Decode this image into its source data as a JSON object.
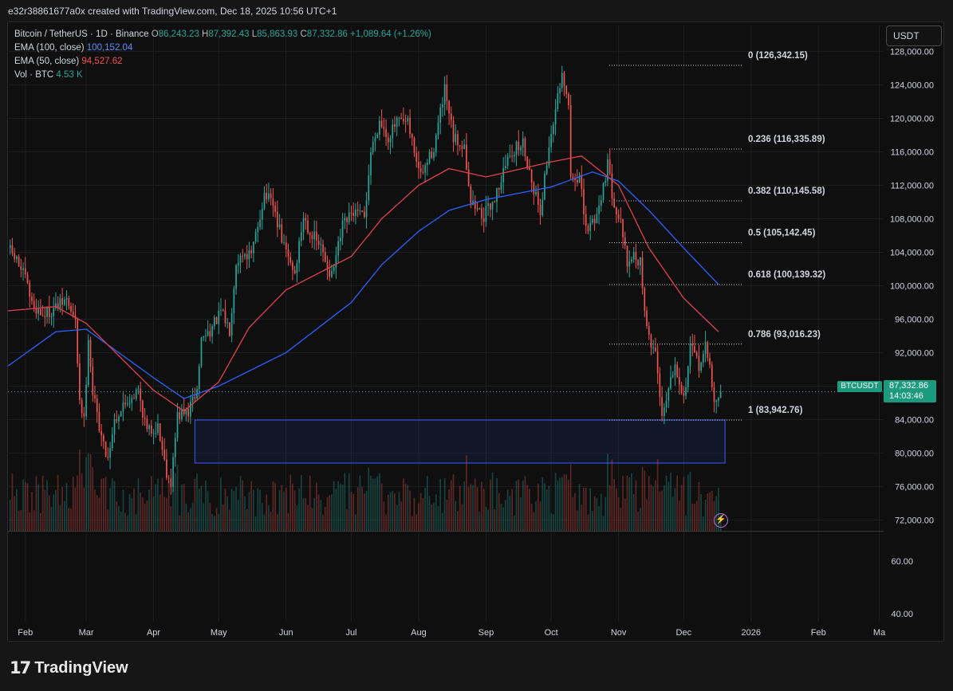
{
  "header": {
    "credit": "e32r38861677a0x created with TradingView.com, Dec 18, 2025 10:56 UTC+1"
  },
  "legend": {
    "symbol": "Bitcoin / TetherUS · 1D · Binance",
    "ohlc": [
      {
        "k": "O",
        "v": "86,243.23"
      },
      {
        "k": "H",
        "v": "87,392.43"
      },
      {
        "k": "L",
        "v": "85,863.93"
      },
      {
        "k": "C",
        "v": "87,332.86"
      }
    ],
    "change": "+1,089.64 (+1.26%)",
    "ema100_label": "EMA (100, close)",
    "ema100_value": "100,152.04",
    "ema50_label": "EMA (50, close)",
    "ema50_value": "94,527.62",
    "vol_label": "Vol · BTC",
    "vol_value": "4.53 K"
  },
  "currency_button": "USDT",
  "last_price": {
    "symbol": "BTCUSDT",
    "price": "87,332.86",
    "countdown": "14:03:46"
  },
  "brand": {
    "name": "TradingView",
    "mark": "17"
  },
  "colors": {
    "bull": "#26a69a",
    "bear": "#ef5350",
    "ema100": "#2962ff",
    "ema50": "#e0424e",
    "zone": "#3d5afe",
    "bg": "#0f0f0f",
    "grid": "#1e1e1e"
  },
  "chart_data": {
    "type": "candlestick",
    "instrument": "BTCUSDT",
    "timeframe": "1D",
    "y_axis": {
      "ticks": [
        128000,
        124000,
        120000,
        116000,
        112000,
        108000,
        104000,
        100000,
        96000,
        92000,
        88000,
        84000,
        80000,
        76000,
        72000
      ],
      "tick_labels": [
        "128,000.00",
        "124,000.00",
        "120,000.00",
        "116,000.00",
        "112,000.00",
        "108,000.00",
        "104,000.00",
        "100,000.00",
        "96,000.00",
        "92,000.00",
        "88,000.00",
        "84,000.00",
        "80,000.00",
        "76,000.00",
        "72,000.00"
      ],
      "range": [
        70700,
        129200
      ]
    },
    "volume_axis": {
      "tick_labels": [
        "60.00",
        "40.00"
      ]
    },
    "x_axis": {
      "labels": [
        "Feb",
        "Mar",
        "Apr",
        "May",
        "Jun",
        "Jul",
        "Aug",
        "Sep",
        "Oct",
        "Nov",
        "Dec",
        "2026",
        "Feb",
        "Ma"
      ],
      "range": [
        "2025-01-24",
        "2026-03-03"
      ]
    },
    "fibonacci": [
      {
        "ratio": "0",
        "price": 126342.15,
        "label": "0 (126,342.15)"
      },
      {
        "ratio": "0.236",
        "price": 116335.89,
        "label": "0.236 (116,335.89)"
      },
      {
        "ratio": "0.382",
        "price": 110145.58,
        "label": "0.382 (110,145.58)"
      },
      {
        "ratio": "0.5",
        "price": 105142.45,
        "label": "0.5 (105,142.45)"
      },
      {
        "ratio": "0.618",
        "price": 100139.32,
        "label": "0.618 (100,139.32)"
      },
      {
        "ratio": "0.786",
        "price": 93016.23,
        "label": "0.786 (93,016.23)"
      },
      {
        "ratio": "1",
        "price": 83942.76,
        "label": "1 (83,942.76)"
      }
    ],
    "zone": {
      "from": "2025-04-20",
      "to": "2025-12-20",
      "top": 83942.76,
      "bottom": 78800
    },
    "last_close": 87332.86,
    "price_anchors": [
      [
        "2025-01-24",
        104500
      ],
      [
        "2025-01-28",
        103000
      ],
      [
        "2025-02-01",
        100800
      ],
      [
        "2025-02-04",
        97800
      ],
      [
        "2025-02-09",
        96500
      ],
      [
        "2025-02-14",
        97200
      ],
      [
        "2025-02-20",
        98300
      ],
      [
        "2025-02-24",
        95500
      ],
      [
        "2025-02-26",
        86500
      ],
      [
        "2025-02-28",
        83800
      ],
      [
        "2025-03-02",
        94000
      ],
      [
        "2025-03-04",
        87200
      ],
      [
        "2025-03-09",
        80800
      ],
      [
        "2025-03-11",
        79500
      ],
      [
        "2025-03-14",
        84000
      ],
      [
        "2025-03-19",
        86000
      ],
      [
        "2025-03-25",
        87500
      ],
      [
        "2025-03-29",
        82500
      ],
      [
        "2025-04-03",
        83200
      ],
      [
        "2025-04-07",
        77800
      ],
      [
        "2025-04-09",
        76500
      ],
      [
        "2025-04-12",
        84500
      ],
      [
        "2025-04-17",
        84900
      ],
      [
        "2025-04-21",
        87500
      ],
      [
        "2025-04-23",
        93600
      ],
      [
        "2025-04-28",
        95000
      ],
      [
        "2025-05-02",
        96800
      ],
      [
        "2025-05-06",
        94800
      ],
      [
        "2025-05-09",
        103000
      ],
      [
        "2025-05-13",
        104000
      ],
      [
        "2025-05-16",
        103500
      ],
      [
        "2025-05-22",
        111000
      ],
      [
        "2025-05-26",
        109500
      ],
      [
        "2025-05-31",
        104600
      ],
      [
        "2025-06-05",
        101500
      ],
      [
        "2025-06-09",
        108300
      ],
      [
        "2025-06-12",
        106500
      ],
      [
        "2025-06-17",
        104500
      ],
      [
        "2025-06-22",
        101000
      ],
      [
        "2025-06-27",
        107000
      ],
      [
        "2025-07-02",
        108800
      ],
      [
        "2025-07-07",
        108000
      ],
      [
        "2025-07-10",
        116000
      ],
      [
        "2025-07-14",
        119800
      ],
      [
        "2025-07-18",
        117800
      ],
      [
        "2025-07-22",
        119500
      ],
      [
        "2025-07-27",
        119300
      ],
      [
        "2025-08-02",
        113000
      ],
      [
        "2025-08-08",
        116500
      ],
      [
        "2025-08-13",
        123300
      ],
      [
        "2025-08-17",
        117500
      ],
      [
        "2025-08-22",
        116800
      ],
      [
        "2025-08-25",
        110000
      ],
      [
        "2025-08-31",
        108300
      ],
      [
        "2025-09-05",
        110500
      ],
      [
        "2025-09-12",
        115900
      ],
      [
        "2025-09-18",
        117000
      ],
      [
        "2025-09-22",
        112600
      ],
      [
        "2025-09-26",
        109000
      ],
      [
        "2025-10-01",
        118500
      ],
      [
        "2025-10-04",
        122300
      ],
      [
        "2025-10-06",
        124700
      ],
      [
        "2025-10-09",
        121500
      ],
      [
        "2025-10-10",
        112800
      ],
      [
        "2025-10-14",
        113000
      ],
      [
        "2025-10-17",
        106500
      ],
      [
        "2025-10-22",
        108500
      ],
      [
        "2025-10-27",
        114500
      ],
      [
        "2025-10-29",
        111000
      ],
      [
        "2025-11-03",
        106500
      ],
      [
        "2025-11-05",
        101500
      ],
      [
        "2025-11-07",
        103500
      ],
      [
        "2025-11-11",
        103000
      ],
      [
        "2025-11-14",
        94500
      ],
      [
        "2025-11-18",
        92000
      ],
      [
        "2025-11-21",
        84500
      ],
      [
        "2025-11-24",
        88000
      ],
      [
        "2025-11-27",
        91000
      ],
      [
        "2025-12-01",
        86500
      ],
      [
        "2025-12-04",
        92500
      ],
      [
        "2025-12-08",
        90500
      ],
      [
        "2025-12-11",
        92500
      ],
      [
        "2025-12-13",
        90200
      ],
      [
        "2025-12-15",
        86500
      ],
      [
        "2025-12-17",
        86200
      ],
      [
        "2025-12-18",
        87332
      ]
    ],
    "ema100_anchors": [
      [
        "2025-01-24",
        90400
      ],
      [
        "2025-02-15",
        94500
      ],
      [
        "2025-03-01",
        94800
      ],
      [
        "2025-04-01",
        89000
      ],
      [
        "2025-04-15",
        86500
      ],
      [
        "2025-05-01",
        88000
      ],
      [
        "2025-06-01",
        92000
      ],
      [
        "2025-07-01",
        98000
      ],
      [
        "2025-07-15",
        102500
      ],
      [
        "2025-08-01",
        106500
      ],
      [
        "2025-08-15",
        109000
      ],
      [
        "2025-09-01",
        110300
      ],
      [
        "2025-10-01",
        111800
      ],
      [
        "2025-10-20",
        113600
      ],
      [
        "2025-11-01",
        112500
      ],
      [
        "2025-11-15",
        109000
      ],
      [
        "2025-12-01",
        104500
      ],
      [
        "2025-12-17",
        100150
      ]
    ],
    "ema50_anchors": [
      [
        "2025-01-24",
        97000
      ],
      [
        "2025-02-15",
        97500
      ],
      [
        "2025-03-01",
        95500
      ],
      [
        "2025-04-01",
        87500
      ],
      [
        "2025-04-15",
        85000
      ],
      [
        "2025-05-01",
        88500
      ],
      [
        "2025-05-15",
        95000
      ],
      [
        "2025-06-01",
        99500
      ],
      [
        "2025-07-01",
        103500
      ],
      [
        "2025-07-15",
        108000
      ],
      [
        "2025-08-01",
        112000
      ],
      [
        "2025-08-15",
        114000
      ],
      [
        "2025-09-01",
        113000
      ],
      [
        "2025-10-01",
        114800
      ],
      [
        "2025-10-15",
        115500
      ],
      [
        "2025-11-01",
        112000
      ],
      [
        "2025-11-15",
        104500
      ],
      [
        "2025-12-01",
        98500
      ],
      [
        "2025-12-17",
        94500
      ]
    ]
  }
}
